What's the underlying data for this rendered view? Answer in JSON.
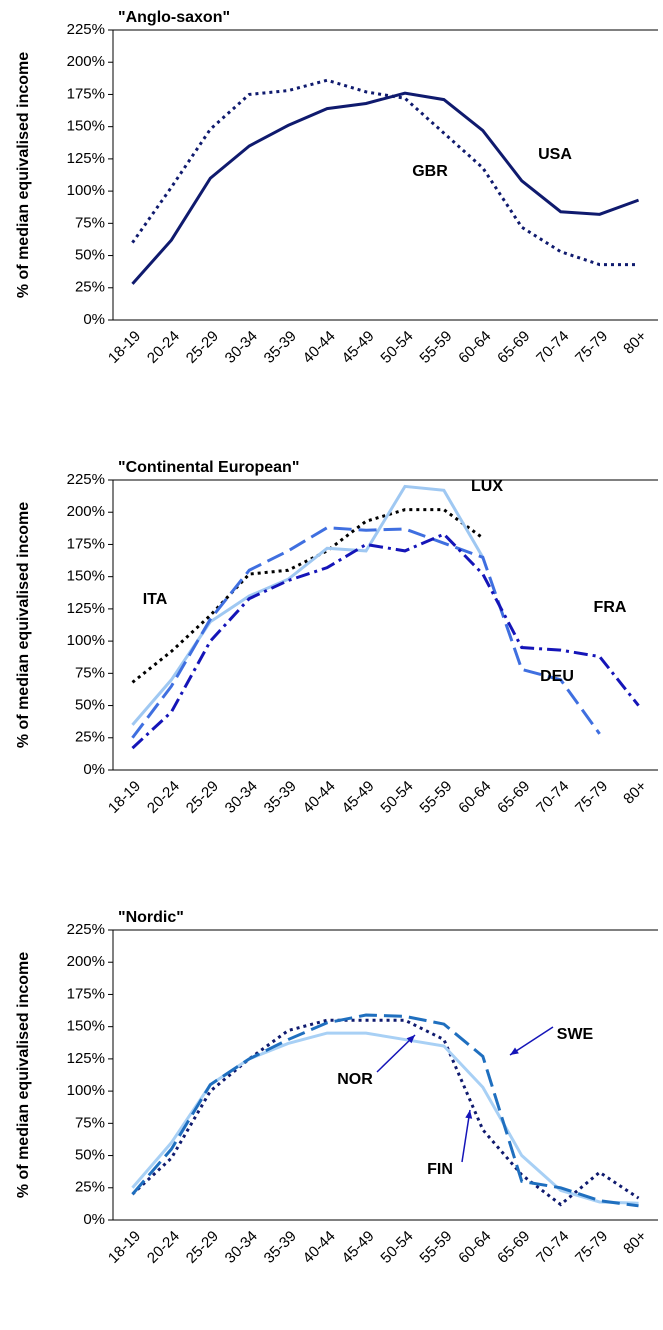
{
  "chart_data": [
    {
      "type": "line",
      "title": "\"Anglo-saxon\"",
      "y_label": "% of median equivalised income",
      "categories": [
        "18-19",
        "20-24",
        "25-29",
        "30-34",
        "35-39",
        "40-44",
        "45-49",
        "50-54",
        "55-59",
        "60-64",
        "65-69",
        "70-74",
        "75-79",
        "80+"
      ],
      "series": [
        {
          "name": "USA",
          "color": "#0f1a6e",
          "style": "solid",
          "values": [
            28,
            62,
            110,
            135,
            151,
            164,
            168,
            176,
            171,
            147,
            108,
            84,
            82,
            93
          ]
        },
        {
          "name": "GBR",
          "color": "#0f1a6e",
          "style": "dotted",
          "values": [
            60,
            103,
            148,
            175,
            178,
            186,
            177,
            172,
            145,
            118,
            72,
            53,
            43,
            43
          ]
        }
      ],
      "ylim": [
        0,
        225
      ],
      "yticks": [
        {
          "value": 0,
          "label": "0%"
        },
        {
          "value": 25,
          "label": "25%"
        },
        {
          "value": 50,
          "label": "50%"
        },
        {
          "value": 75,
          "label": "75%"
        },
        {
          "value": 100,
          "label": "100%"
        },
        {
          "value": 125,
          "label": "125%"
        },
        {
          "value": 150,
          "label": "150%"
        },
        {
          "value": 175,
          "label": "175%"
        },
        {
          "value": 200,
          "label": "200%"
        },
        {
          "value": 225,
          "label": "225%"
        }
      ]
    },
    {
      "type": "line",
      "title": "\"Continental European\"",
      "y_label": "% of median equivalised income",
      "categories": [
        "18-19",
        "20-24",
        "25-29",
        "30-34",
        "35-39",
        "40-44",
        "45-49",
        "50-54",
        "55-59",
        "60-64",
        "65-69",
        "70-74",
        "75-79",
        "80+"
      ],
      "series": [
        {
          "name": "ITA",
          "color": "#000000",
          "style": "dotted",
          "values": [
            68,
            92,
            120,
            152,
            155,
            170,
            193,
            202,
            202,
            180,
            null,
            null,
            null,
            null
          ]
        },
        {
          "name": "LUX",
          "color": "#9fc8f2",
          "style": "solid",
          "values": [
            35,
            70,
            115,
            135,
            148,
            172,
            170,
            220,
            217,
            165,
            null,
            null,
            null,
            null
          ]
        },
        {
          "name": "DEU",
          "color": "#3f6fe0",
          "style": "dashed",
          "values": [
            25,
            65,
            117,
            155,
            170,
            188,
            186,
            187,
            176,
            165,
            78,
            70,
            28,
            null
          ]
        },
        {
          "name": "FRA",
          "color": "#1515b8",
          "style": "dashdot",
          "values": [
            17,
            45,
            100,
            133,
            147,
            157,
            175,
            170,
            183,
            152,
            95,
            93,
            88,
            50
          ]
        }
      ],
      "ylim": [
        0,
        225
      ],
      "yticks": [
        {
          "value": 0,
          "label": "0%"
        },
        {
          "value": 25,
          "label": "25%"
        },
        {
          "value": 50,
          "label": "50%"
        },
        {
          "value": 75,
          "label": "75%"
        },
        {
          "value": 100,
          "label": "100%"
        },
        {
          "value": 125,
          "label": "125%"
        },
        {
          "value": 150,
          "label": "150%"
        },
        {
          "value": 175,
          "label": "175%"
        },
        {
          "value": 200,
          "label": "200%"
        },
        {
          "value": 225,
          "label": "225%"
        }
      ]
    },
    {
      "type": "line",
      "title": "\"Nordic\"",
      "y_label": "% of median equivalised income",
      "categories": [
        "18-19",
        "20-24",
        "25-29",
        "30-34",
        "35-39",
        "40-44",
        "45-49",
        "50-54",
        "55-59",
        "60-64",
        "65-69",
        "70-74",
        "75-79",
        "80+"
      ],
      "series": [
        {
          "name": "FIN",
          "color": "#0f1a6e",
          "style": "dotted",
          "values": [
            20,
            48,
            100,
            125,
            147,
            155,
            155,
            155,
            140,
            70,
            35,
            12,
            37,
            17
          ]
        },
        {
          "name": "NOR",
          "color": "#a8d0f5",
          "style": "solid",
          "values": [
            25,
            60,
            105,
            125,
            137,
            145,
            145,
            140,
            135,
            103,
            50,
            23,
            14,
            13
          ]
        },
        {
          "name": "SWE",
          "color": "#1f6fbf",
          "style": "dashed",
          "values": [
            20,
            55,
            105,
            125,
            140,
            153,
            159,
            158,
            152,
            127,
            30,
            25,
            15,
            11
          ]
        }
      ],
      "ylim": [
        0,
        225
      ],
      "yticks": [
        {
          "value": 0,
          "label": "0%"
        },
        {
          "value": 25,
          "label": "25%"
        },
        {
          "value": 50,
          "label": "50%"
        },
        {
          "value": 75,
          "label": "75%"
        },
        {
          "value": 100,
          "label": "100%"
        },
        {
          "value": 125,
          "label": "125%"
        },
        {
          "value": 150,
          "label": "150%"
        },
        {
          "value": 175,
          "label": "175%"
        },
        {
          "value": 200,
          "label": "200%"
        },
        {
          "value": 225,
          "label": "225%"
        }
      ]
    }
  ]
}
